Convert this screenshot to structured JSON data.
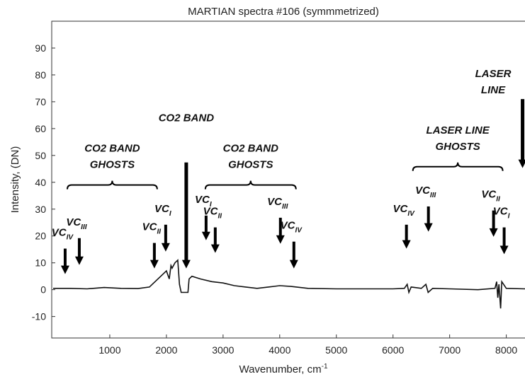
{
  "chart_data": {
    "type": "line",
    "title": "MARTIAN spectra #106 (symmmetrized)",
    "x_label": {
      "text": "Wavenumber, cm",
      "sup": "-1"
    },
    "y_label": "Intensity, (DN)",
    "xlim": [
      -25,
      8330
    ],
    "ylim": [
      -18,
      100
    ],
    "xticks": [
      1000,
      2000,
      3000,
      4000,
      5000,
      6000,
      7000,
      8000
    ],
    "yticks": [
      -10,
      0,
      10,
      20,
      30,
      40,
      50,
      60,
      70,
      80,
      90
    ],
    "series": [
      {
        "color": "#111111",
        "x": [
          0,
          300,
          600,
          900,
          1200,
          1500,
          1700,
          1800,
          1900,
          2000,
          2050,
          2080,
          2100,
          2150,
          2200,
          2230,
          2260,
          2300,
          2350,
          2380,
          2400,
          2450,
          2600,
          2800,
          3000,
          3200,
          3400,
          3600,
          3800,
          4000,
          4200,
          4500,
          5000,
          5500,
          6000,
          6200,
          6250,
          6280,
          6320,
          6500,
          6580,
          6620,
          6700,
          7000,
          7500,
          7800,
          7830,
          7850,
          7870,
          7900,
          7920,
          8000,
          8330
        ],
        "values": [
          0.5,
          0.5,
          0.3,
          0.8,
          0.5,
          0.4,
          1,
          3,
          5,
          7,
          4,
          9,
          8,
          10,
          11,
          2,
          -1,
          -1,
          -1,
          -1,
          4,
          5,
          4,
          3,
          2.5,
          1.5,
          1,
          0.5,
          1,
          1.5,
          1.2,
          0.5,
          0.3,
          0.3,
          0.3,
          0.5,
          2,
          -1,
          1,
          0.5,
          2,
          -1,
          0.5,
          0.3,
          0,
          0.5,
          3,
          -3,
          2,
          -7,
          3,
          0.5,
          0.3
        ]
      }
    ],
    "arrows": [
      {
        "text": "VC",
        "sub": "IV",
        "x": 212,
        "y_top": 15.3,
        "y": 5.8
      },
      {
        "text": "VC",
        "sub": "III",
        "x": 462,
        "y_top": 19.2,
        "y": 9.2
      },
      {
        "text": "VC",
        "sub": "II",
        "x": 1787,
        "y_top": 17.4,
        "y": 7.9
      },
      {
        "text": "VC",
        "sub": "I",
        "x": 1987,
        "y_top": 24.2,
        "y": 14.2
      },
      {
        "lines": [
          "CO2 BAND"
        ],
        "x": 2350,
        "y_top": 47.4,
        "y": 7.9
      },
      {
        "text": "VC",
        "sub": "I",
        "x": 2700,
        "y_top": 27.6,
        "y": 18.4
      },
      {
        "text": "VC",
        "sub": "II",
        "x": 2862,
        "y_top": 23.2,
        "y": 13.7
      },
      {
        "text": "VC",
        "sub": "III",
        "x": 4012,
        "y_top": 26.8,
        "y": 17.1
      },
      {
        "text": "VC",
        "sub": "IV",
        "x": 4250,
        "y_top": 17.9,
        "y": 7.9
      },
      {
        "text": "VC",
        "sub": "IV",
        "x": 6237,
        "y_top": 24.2,
        "y": 15.3
      },
      {
        "text": "VC",
        "sub": "III",
        "x": 6625,
        "y_top": 31,
        "y": 21.6
      },
      {
        "text": "VC",
        "sub": "II",
        "x": 7775,
        "y_top": 29.5,
        "y": 19.7
      },
      {
        "text": "VC",
        "sub": "I",
        "x": 7962,
        "y_top": 23.2,
        "y": 13.2
      },
      {
        "lines": [
          "LASER",
          "LINE"
        ],
        "x": 8287,
        "y_top": 71,
        "y": 45.3
      }
    ],
    "braces": [
      {
        "lines": [
          "CO2 BAND",
          "GHOSTS"
        ],
        "x_from": 250,
        "x_to": 1837,
        "y": 39
      },
      {
        "lines": [
          "CO2 BAND",
          "GHOSTS"
        ],
        "x_from": 2687,
        "x_to": 4287,
        "y": 39
      },
      {
        "lines": [
          "LASER LINE",
          "GHOSTS"
        ],
        "x_from": 6350,
        "x_to": 7937,
        "y": 45.8
      }
    ]
  }
}
